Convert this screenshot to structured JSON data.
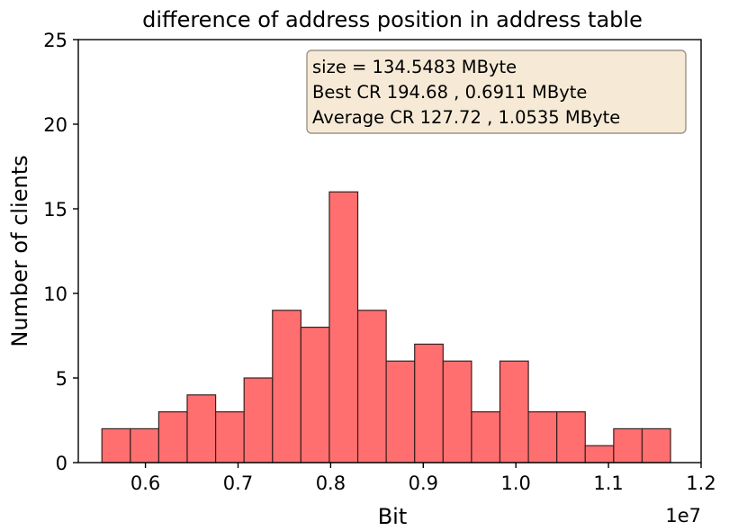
{
  "chart_data": {
    "type": "bar",
    "title": "difference of address position in address table",
    "xlabel": "Bit",
    "ylabel": "Number of clients",
    "x_offset_label": "1e7",
    "xlim": [
      0.5275,
      1.2
    ],
    "ylim": [
      0,
      25
    ],
    "x_ticks": [
      0.6,
      0.7,
      0.8,
      0.9,
      1.0,
      1.1,
      1.2
    ],
    "x_tick_labels": [
      "0.6",
      "0.7",
      "0.8",
      "0.9",
      "1.0",
      "1.1",
      "1.2"
    ],
    "y_ticks": [
      0,
      5,
      10,
      15,
      20,
      25
    ],
    "y_tick_labels": [
      "0",
      "5",
      "10",
      "15",
      "20",
      "25"
    ],
    "bin_start": 0.553,
    "bin_width": 0.0307,
    "values": [
      2,
      2,
      3,
      4,
      3,
      5,
      9,
      8,
      16,
      9,
      6,
      7,
      6,
      3,
      6,
      3,
      3,
      1,
      2,
      2
    ],
    "bar_color": "#ff6f6f",
    "edge_color": "#3a2020",
    "grid": false,
    "legend": "none",
    "annotation": {
      "placement": "top-right",
      "background": "#f6ead6",
      "lines": [
        "size  = 134.5483 MByte",
        "Best CR   194.68 ,  0.6911 MByte",
        "Average CR   127.72 ,  1.0535 MByte"
      ]
    }
  }
}
